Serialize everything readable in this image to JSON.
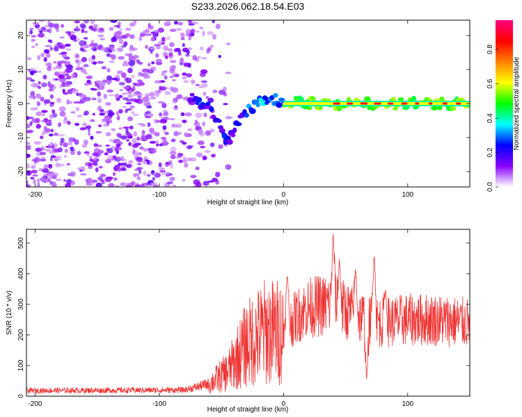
{
  "title": "S233.2026.062.18.54.E03",
  "chart_data": [
    {
      "type": "heatmap",
      "name": "spectrogram",
      "xlabel": "Height of straight line (km)",
      "ylabel": "Frequency (Hz)",
      "xlim": [
        -207,
        150
      ],
      "ylim": [
        -24.5,
        24.5
      ],
      "xticks": [
        -200,
        -100,
        0,
        100
      ],
      "xtick_labels": [
        "-200",
        "-100",
        "0",
        "100"
      ],
      "yticks": [
        -20,
        -10,
        0,
        10,
        20
      ],
      "ytick_labels": [
        "-20",
        "-10",
        "0",
        "10",
        "20"
      ],
      "colorbar": {
        "label": "Normalized spectral amplitude",
        "range": [
          0,
          0.97
        ],
        "ticks": [
          0.0,
          0.2,
          0.4,
          0.6,
          0.8
        ],
        "tick_labels": [
          "0.0",
          "0.2",
          "0.4",
          "0.6",
          "0.8"
        ],
        "colormap": [
          "#ffffff",
          "#8a00ff",
          "#0000ff",
          "#00ffff",
          "#00ff00",
          "#ffff00",
          "#ff8000",
          "#ff0000",
          "#ff007f"
        ]
      },
      "noise_region_x": [
        -207,
        -60
      ],
      "dispersion_track": [
        {
          "x": -75,
          "y": 2
        },
        {
          "x": -65,
          "y": 0
        },
        {
          "x": -58,
          "y": -2
        },
        {
          "x": -52,
          "y": -6
        },
        {
          "x": -48,
          "y": -10
        },
        {
          "x": -46,
          "y": -12
        },
        {
          "x": -42,
          "y": -10
        },
        {
          "x": -38,
          "y": -7
        },
        {
          "x": -33,
          "y": -4
        },
        {
          "x": -28,
          "y": -2
        },
        {
          "x": -22,
          "y": 0
        },
        {
          "x": -15,
          "y": 1
        },
        {
          "x": -5,
          "y": 1
        },
        {
          "x": 10,
          "y": 0.5
        },
        {
          "x": 30,
          "y": 0
        },
        {
          "x": 150,
          "y": 0
        }
      ],
      "constant_line": {
        "x_start": 0,
        "x_end": 150,
        "y": 0,
        "amplitude": 0.9
      }
    },
    {
      "type": "line",
      "name": "snr",
      "xlabel": "Height of straight line (km)",
      "ylabel": "SNR (10 * v/v)",
      "xlim": [
        -207,
        150
      ],
      "ylim": [
        0,
        545
      ],
      "xticks": [
        -200,
        -100,
        0,
        100
      ],
      "xtick_labels": [
        "-200",
        "-100",
        "0",
        "100"
      ],
      "yticks": [
        0,
        100,
        200,
        300,
        400,
        500
      ],
      "ytick_labels": [
        "0",
        "100",
        "200",
        "300",
        "400",
        "500"
      ],
      "color": "#ee3333",
      "envelope": [
        {
          "x": -207,
          "y": 18
        },
        {
          "x": -80,
          "y": 20
        },
        {
          "x": -60,
          "y": 40
        },
        {
          "x": -45,
          "y": 80
        },
        {
          "x": -30,
          "y": 170
        },
        {
          "x": -15,
          "y": 210
        },
        {
          "x": 0,
          "y": 210
        },
        {
          "x": 10,
          "y": 260
        },
        {
          "x": 20,
          "y": 290
        },
        {
          "x": 40,
          "y": 300
        },
        {
          "x": 60,
          "y": 260
        },
        {
          "x": 80,
          "y": 240
        },
        {
          "x": 100,
          "y": 250
        },
        {
          "x": 120,
          "y": 250
        },
        {
          "x": 150,
          "y": 240
        }
      ],
      "peaks": [
        {
          "x": 40,
          "y": 535
        },
        {
          "x": 45,
          "y": 450
        },
        {
          "x": 73,
          "y": 470
        },
        {
          "x": 3,
          "y": 400
        },
        {
          "x": 58,
          "y": 420
        },
        {
          "x": 82,
          "y": 350
        },
        {
          "x": 67,
          "y": 50
        }
      ]
    }
  ]
}
